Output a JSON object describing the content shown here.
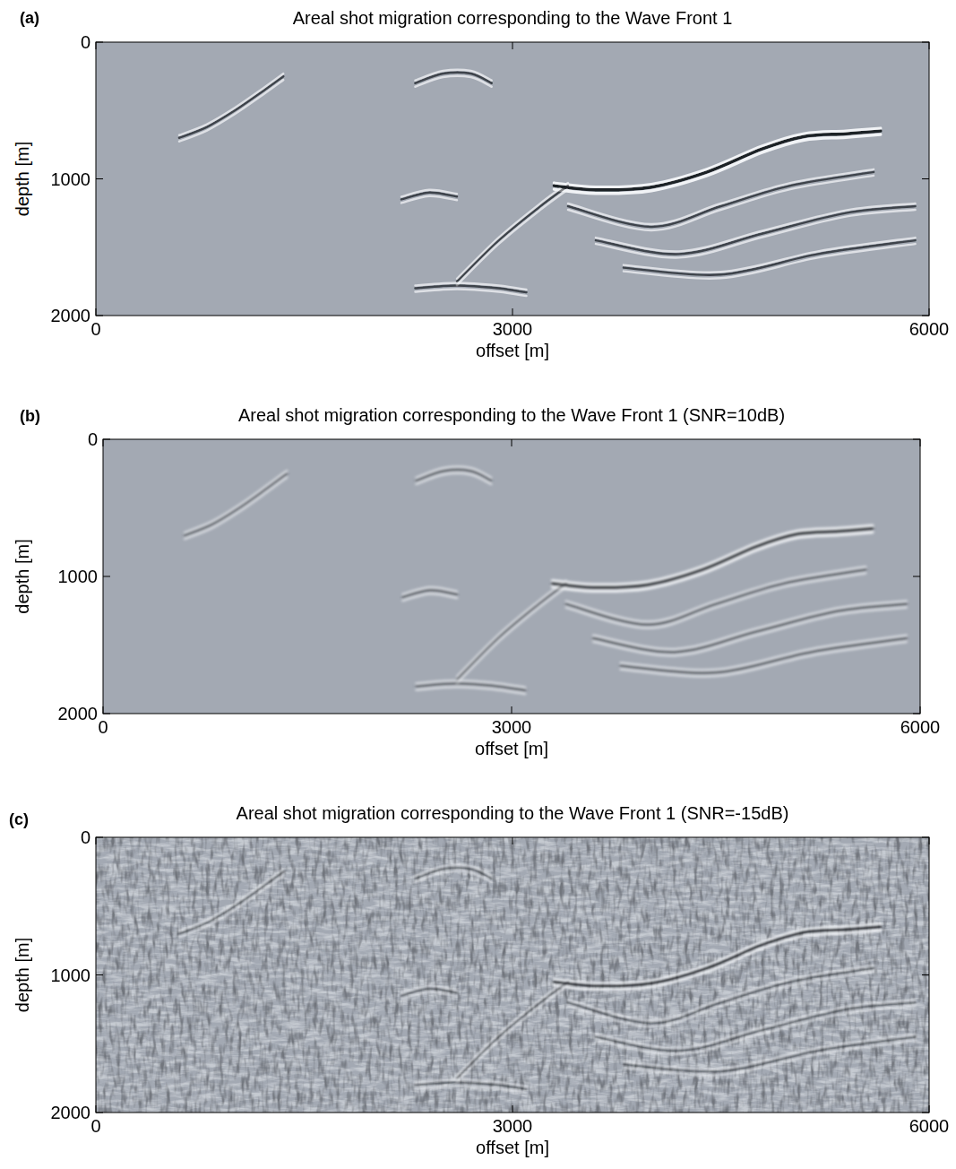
{
  "chart_data": [
    {
      "type": "image",
      "panel_label": "(a)",
      "title": "Areal shot migration corresponding to the Wave Front 1",
      "xlabel": "offset [m]",
      "ylabel": "depth [m]",
      "xlim": [
        0,
        6000
      ],
      "xticks": [
        0,
        3000,
        6000
      ],
      "ylim": [
        2000,
        0
      ],
      "yticks": [
        0,
        1000,
        2000
      ],
      "color": "#1c2026",
      "series": [
        {
          "x": [
            600,
            800,
            1000,
            1200,
            1350
          ],
          "values": [
            700,
            620,
            500,
            360,
            250
          ]
        },
        {
          "x": [
            2300,
            2500,
            2700,
            2850
          ],
          "values": [
            300,
            230,
            230,
            300
          ]
        },
        {
          "x": [
            3300,
            3600,
            4000,
            4400,
            4800,
            5100,
            5400,
            5650
          ],
          "values": [
            1050,
            1080,
            1060,
            950,
            780,
            690,
            670,
            650
          ]
        },
        {
          "x": [
            3400,
            4000,
            4500,
            5000,
            5600
          ],
          "values": [
            1200,
            1350,
            1200,
            1050,
            950
          ]
        },
        {
          "x": [
            3600,
            4200,
            4800,
            5400,
            5900
          ],
          "values": [
            1450,
            1550,
            1400,
            1250,
            1200
          ]
        },
        {
          "x": [
            3800,
            4500,
            5200,
            5900
          ],
          "values": [
            1650,
            1700,
            1550,
            1450
          ]
        },
        {
          "x": [
            2300,
            2600,
            2900,
            3100
          ],
          "values": [
            1800,
            1780,
            1800,
            1830
          ]
        },
        {
          "x": [
            2600,
            2900,
            3200,
            3400
          ],
          "values": [
            1750,
            1450,
            1200,
            1050
          ]
        },
        {
          "x": [
            2200,
            2400,
            2600
          ],
          "values": [
            1150,
            1100,
            1130
          ]
        }
      ]
    },
    {
      "type": "image",
      "panel_label": "(b)",
      "title": "Areal shot migration corresponding to the Wave Front 1 (SNR=10dB)",
      "xlabel": "offset [m]",
      "ylabel": "depth [m]",
      "xlim": [
        0,
        6000
      ],
      "xticks": [
        0,
        3000,
        6000
      ],
      "ylim": [
        2000,
        0
      ],
      "yticks": [
        0,
        1000,
        2000
      ],
      "color": "#1c2026",
      "series": [
        {
          "x": [
            600,
            800,
            1000,
            1200,
            1350
          ],
          "values": [
            700,
            620,
            500,
            360,
            250
          ]
        },
        {
          "x": [
            2300,
            2500,
            2700,
            2850
          ],
          "values": [
            300,
            230,
            230,
            300
          ]
        },
        {
          "x": [
            3300,
            3600,
            4000,
            4400,
            4800,
            5100,
            5400,
            5650
          ],
          "values": [
            1050,
            1080,
            1060,
            950,
            780,
            690,
            670,
            650
          ]
        },
        {
          "x": [
            3400,
            4000,
            4500,
            5000,
            5600
          ],
          "values": [
            1200,
            1350,
            1200,
            1050,
            950
          ]
        },
        {
          "x": [
            3600,
            4200,
            4800,
            5400,
            5900
          ],
          "values": [
            1450,
            1550,
            1400,
            1250,
            1200
          ]
        },
        {
          "x": [
            3800,
            4500,
            5200,
            5900
          ],
          "values": [
            1650,
            1700,
            1550,
            1450
          ]
        },
        {
          "x": [
            2300,
            2600,
            2900,
            3100
          ],
          "values": [
            1800,
            1780,
            1800,
            1830
          ]
        },
        {
          "x": [
            2600,
            2900,
            3200,
            3400
          ],
          "values": [
            1750,
            1450,
            1200,
            1050
          ]
        },
        {
          "x": [
            2200,
            2400,
            2600
          ],
          "values": [
            1150,
            1100,
            1130
          ]
        }
      ]
    },
    {
      "type": "noisy_image",
      "panel_label": "(c)",
      "title": "Areal shot migration corresponding to the Wave Front 1 (SNR=-15dB)",
      "xlabel": "offset [m]",
      "ylabel": "depth [m]",
      "xlim": [
        0,
        6000
      ],
      "xticks": [
        0,
        3000,
        6000
      ],
      "ylim": [
        2000,
        0
      ],
      "yticks": [
        0,
        1000,
        2000
      ],
      "color": "#1c2026",
      "series": [
        {
          "x": [
            600,
            800,
            1000,
            1200,
            1350
          ],
          "values": [
            700,
            620,
            500,
            360,
            250
          ]
        },
        {
          "x": [
            2300,
            2500,
            2700,
            2850
          ],
          "values": [
            300,
            230,
            230,
            300
          ]
        },
        {
          "x": [
            3300,
            3600,
            4000,
            4400,
            4800,
            5100,
            5400,
            5650
          ],
          "values": [
            1050,
            1080,
            1060,
            950,
            780,
            690,
            670,
            650
          ]
        },
        {
          "x": [
            3400,
            4000,
            4500,
            5000,
            5600
          ],
          "values": [
            1200,
            1350,
            1200,
            1050,
            950
          ]
        },
        {
          "x": [
            3600,
            4200,
            4800,
            5400,
            5900
          ],
          "values": [
            1450,
            1550,
            1400,
            1250,
            1200
          ]
        },
        {
          "x": [
            3800,
            4500,
            5200,
            5900
          ],
          "values": [
            1650,
            1700,
            1550,
            1450
          ]
        },
        {
          "x": [
            2300,
            2600,
            2900,
            3100
          ],
          "values": [
            1800,
            1780,
            1800,
            1830
          ]
        },
        {
          "x": [
            2600,
            2900,
            3200,
            3400
          ],
          "values": [
            1750,
            1450,
            1200,
            1050
          ]
        },
        {
          "x": [
            2200,
            2400,
            2600
          ],
          "values": [
            1150,
            1100,
            1130
          ]
        }
      ]
    }
  ]
}
